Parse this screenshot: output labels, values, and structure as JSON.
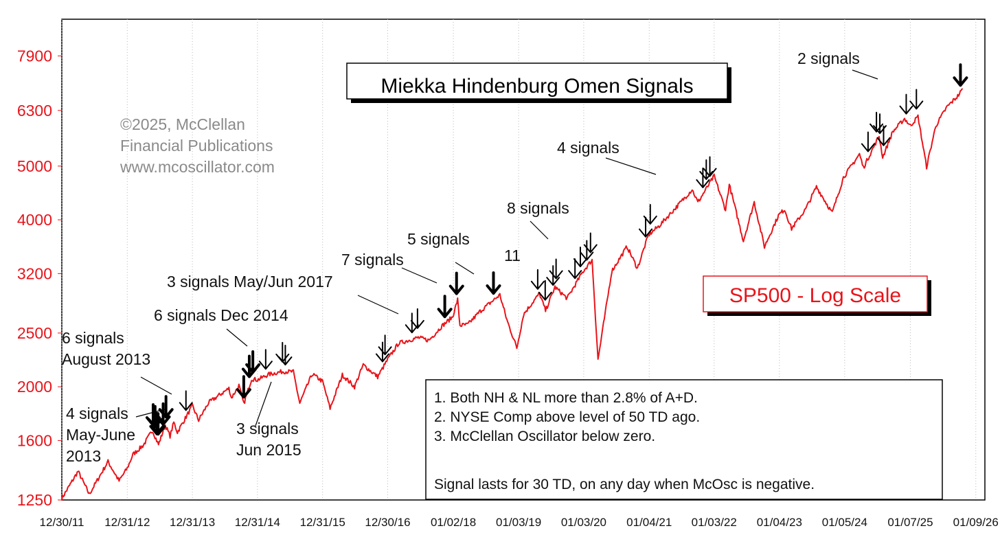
{
  "chart_data": {
    "type": "line",
    "title": "Miekka Hindenburg Omen Signals",
    "subtitle": "SP500 - Log Scale",
    "xlabel": "",
    "ylabel": "",
    "y_scale": "log",
    "grid": "vertical dotted",
    "ylim": [
      1250,
      9200
    ],
    "xlim": [
      "2011-12-30",
      "2026-03-01"
    ],
    "y_ticks": [
      "1250",
      "1600",
      "2000",
      "2500",
      "3200",
      "4000",
      "5000",
      "6300",
      "7900"
    ],
    "x_ticks": [
      "12/30/11",
      "12/31/12",
      "12/31/13",
      "12/31/14",
      "12/31/15",
      "12/30/16",
      "01/02/18",
      "01/03/19",
      "01/03/20",
      "01/04/21",
      "01/03/22",
      "01/04/23",
      "01/05/24",
      "01/07/25",
      "01/09/26"
    ],
    "copyright": [
      "©2025, McClellan",
      "Financial Publications",
      "www.mcoscillator.com"
    ],
    "series": [
      {
        "color": "#e8141a",
        "x": [
          "2011-12-30",
          "2012-02-01",
          "2012-03-30",
          "2012-06-01",
          "2012-09-14",
          "2012-11-15",
          "2012-12-31",
          "2013-02-01",
          "2013-04-01",
          "2013-05-21",
          "2013-06-24",
          "2013-08-01",
          "2013-08-28",
          "2013-09-18",
          "2013-10-08",
          "2013-12-31",
          "2014-02-04",
          "2014-04-01",
          "2014-07-24",
          "2014-08-07",
          "2014-09-18",
          "2014-10-15",
          "2014-11-28",
          "2014-12-31",
          "2015-03-01",
          "2015-05-20",
          "2015-07-20",
          "2015-08-25",
          "2015-11-03",
          "2015-12-31",
          "2016-02-11",
          "2016-04-20",
          "2016-06-27",
          "2016-08-15",
          "2016-11-04",
          "2016-12-30",
          "2017-03-01",
          "2017-06-19",
          "2017-08-18",
          "2017-10-31",
          "2017-12-29",
          "2018-01-26",
          "2018-02-08",
          "2018-03-23",
          "2018-06-01",
          "2018-09-20",
          "2018-10-29",
          "2018-12-24",
          "2019-01-31",
          "2019-04-30",
          "2019-06-03",
          "2019-07-26",
          "2019-10-02",
          "2019-12-31",
          "2020-02-19",
          "2020-03-23",
          "2020-06-08",
          "2020-09-02",
          "2020-10-30",
          "2020-12-31",
          "2021-03-01",
          "2021-06-01",
          "2021-09-02",
          "2021-10-04",
          "2022-01-03",
          "2022-03-08",
          "2022-03-29",
          "2022-06-16",
          "2022-08-16",
          "2022-10-12",
          "2022-12-30",
          "2023-02-02",
          "2023-03-13",
          "2023-05-31",
          "2023-07-31",
          "2023-10-27",
          "2023-12-29",
          "2024-03-28",
          "2024-04-19",
          "2024-07-16",
          "2024-08-05",
          "2024-09-30",
          "2024-12-06",
          "2025-01-07",
          "2025-02-19",
          "2025-04-08",
          "2025-05-30",
          "2025-07-31",
          "2025-09-30",
          "2025-10-28"
        ],
        "y": [
          1258,
          1310,
          1408,
          1280,
          1466,
          1353,
          1426,
          1510,
          1570,
          1669,
          1573,
          1706,
          1630,
          1725,
          1656,
          1848,
          1741,
          1872,
          1987,
          1909,
          2011,
          1862,
          2067,
          2058,
          2104,
          2131,
          2128,
          1868,
          2109,
          2044,
          1829,
          2100,
          2000,
          2190,
          2085,
          2239,
          2396,
          2453,
          2425,
          2575,
          2673,
          2872,
          2581,
          2588,
          2735,
          2930,
          2641,
          2351,
          2704,
          2945,
          2744,
          3025,
          2887,
          3230,
          3386,
          2237,
          3232,
          3580,
          3270,
          3756,
          3901,
          4202,
          4537,
          4300,
          4796,
          4170,
          4631,
          3666,
          4305,
          3577,
          4075,
          4179,
          3855,
          4180,
          4588,
          4117,
          4769,
          5254,
          4967,
          5667,
          5186,
          5762,
          6090,
          5909,
          6144,
          4983,
          5911,
          6389,
          6688,
          6890
        ]
      }
    ],
    "signal_groups": [
      {
        "label": "4 signals\nMay-June\n2013",
        "dates": [
          "2013-05-25",
          "2013-06-05",
          "2013-06-15",
          "2013-06-22"
        ],
        "weight": "heavy"
      },
      {
        "label": "6 signals\nAugust 2013",
        "dates": [
          "2013-07-20",
          "2013-08-05"
        ],
        "weight": "heavy"
      },
      {
        "label": "",
        "dates": [
          "2013-11-25"
        ],
        "weight": "thin"
      },
      {
        "label": "6 signals Dec 2014",
        "dates": [
          "2014-10-15",
          "2014-11-15",
          "2014-12-05"
        ],
        "weight": "heavy"
      },
      {
        "label": "3 signals\nJun 2015",
        "dates": [
          "2015-02-15",
          "2015-05-20",
          "2015-06-05"
        ],
        "weight": "thin"
      },
      {
        "label": "",
        "dates": [
          "2016-12-01",
          "2016-12-15"
        ],
        "weight": "thin"
      },
      {
        "label": "3 signals May/Jun 2017",
        "dates": [
          "2017-05-15",
          "2017-06-15"
        ],
        "weight": "thin"
      },
      {
        "label": "7 signals",
        "dates": [
          "2017-11-15",
          "2018-01-20"
        ],
        "weight": "heavy"
      },
      {
        "label": "5 signals",
        "dates": [
          "2018-08-15"
        ],
        "weight": "heavy"
      },
      {
        "label": "11",
        "dates": [
          "2019-04-20",
          "2019-06-01",
          "2019-07-15",
          "2019-08-01"
        ],
        "weight": "thin"
      },
      {
        "label": "8 signals",
        "dates": [
          "2019-11-15",
          "2019-12-15",
          "2020-01-20",
          "2020-02-10"
        ],
        "weight": "thin"
      },
      {
        "label": "",
        "dates": [
          "2020-12-15",
          "2021-01-10"
        ],
        "weight": "thin"
      },
      {
        "label": "4 signals",
        "dates": [
          "2021-11-01",
          "2021-11-20",
          "2021-12-10"
        ],
        "weight": "thin"
      },
      {
        "label": "",
        "dates": [
          "2024-05-15",
          "2024-07-01",
          "2024-07-20",
          "2024-08-10"
        ],
        "weight": "thin"
      },
      {
        "label": "",
        "dates": [
          "2024-12-15",
          "2025-02-10"
        ],
        "weight": "thin"
      },
      {
        "label": "2 signals",
        "dates": [
          "2025-10-15"
        ],
        "weight": "heavy"
      }
    ],
    "rules": [
      "1. Both NH & NL more than 2.8% of A+D.",
      "2. NYSE Comp above level of 50 TD ago.",
      "3. McClellan Oscillator below zero.",
      "",
      "Signal lasts for 30 TD, on any day when McOsc is negative."
    ],
    "legend": "none"
  }
}
